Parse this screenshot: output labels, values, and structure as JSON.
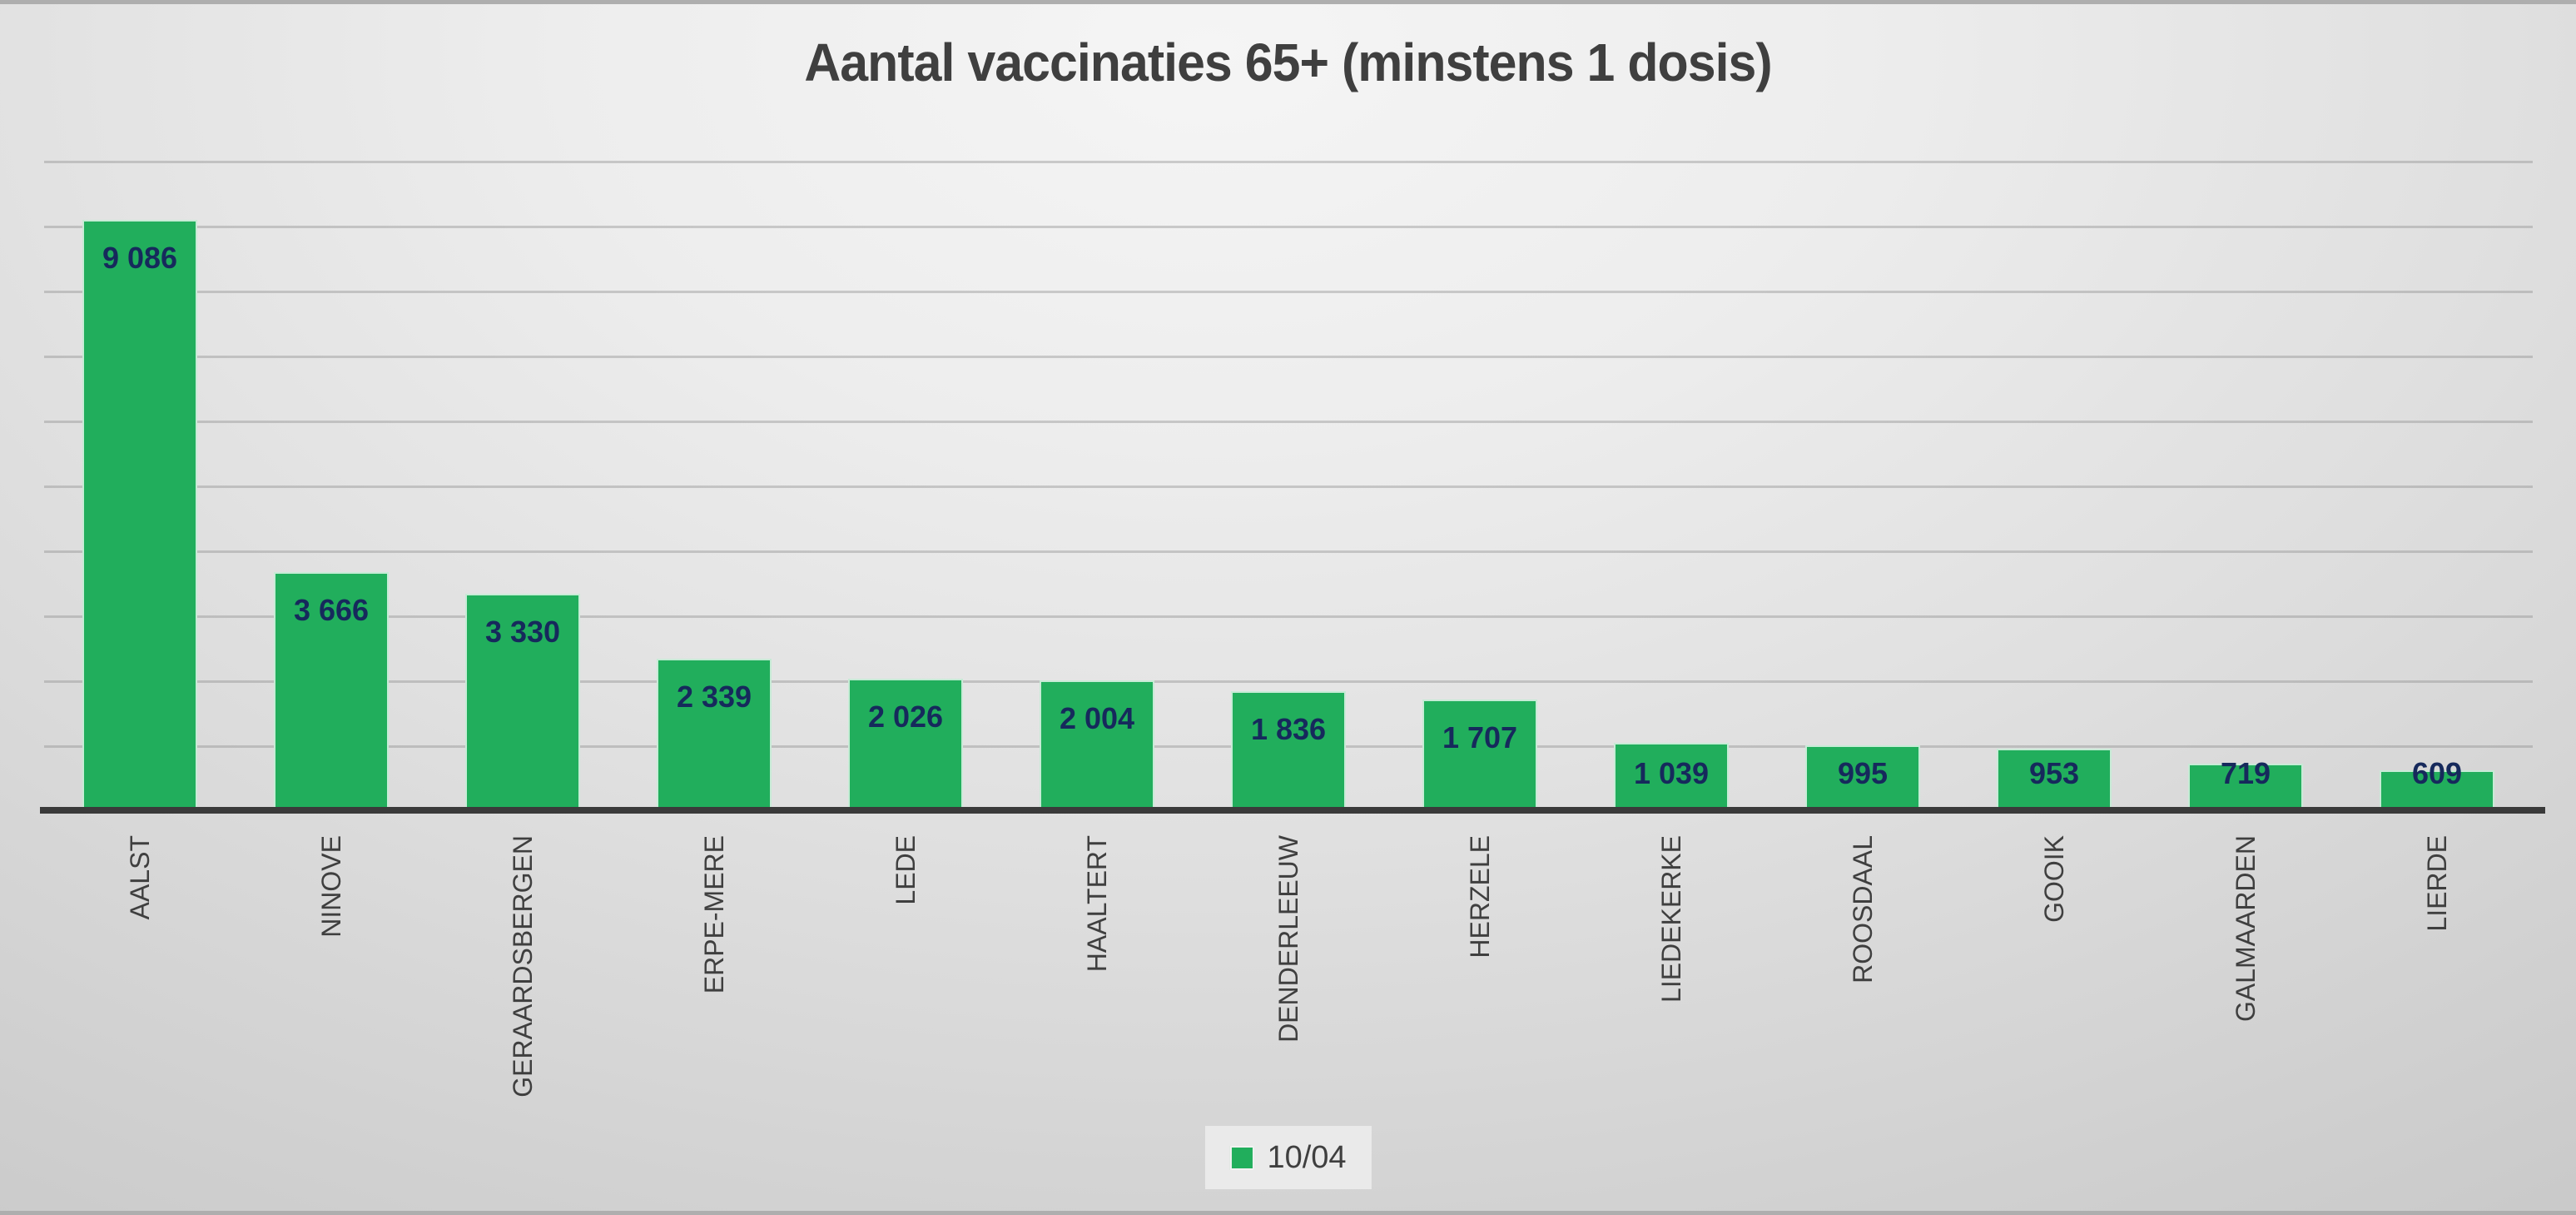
{
  "title": "Aantal vaccinaties 65+ (minstens 1 dosis)",
  "legend": {
    "label": "10/04",
    "swatch_color": "#21ae5c"
  },
  "colors": {
    "bar": "#21ae5c",
    "bar_border": "rgba(255,255,255,0.75)",
    "value_label": "#16295c",
    "category_label": "#3f3f3f",
    "title": "#3f3f3f",
    "axis_line": "#3a3a3a",
    "gridline": "rgba(140,140,140,0.40)",
    "legend_background": "#eaeaea"
  },
  "chart_data": {
    "type": "bar",
    "title": "Aantal vaccinaties 65+ (minstens 1 dosis)",
    "categories": [
      "AALST",
      "NINOVE",
      "GERAARDSBERGEN",
      "ERPE-MERE",
      "LEDE",
      "HAALTERT",
      "DENDERLEEUW",
      "HERZELE",
      "LIEDEKERKE",
      "ROOSDAAL",
      "GOOIK",
      "GALMAARDEN",
      "LIERDE"
    ],
    "series": [
      {
        "name": "10/04",
        "values": [
          9086,
          3666,
          3330,
          2339,
          2026,
          2004,
          1836,
          1707,
          1039,
          995,
          953,
          719,
          609
        ]
      }
    ],
    "value_label_format": "thousands separated by space",
    "xlabel": "",
    "ylabel": "",
    "ylim": [
      0,
      10000
    ],
    "gridline_step": 1000,
    "grid": "horizontal",
    "y_axis_tick_labels_visible": false,
    "legend_position": "bottom",
    "data_labels": "inside end"
  }
}
